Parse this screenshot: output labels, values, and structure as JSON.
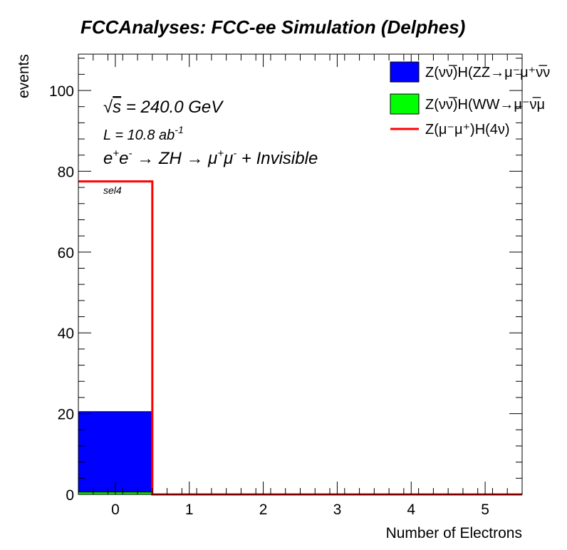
{
  "title": "FCCAnalyses: FCC-ee Simulation (Delphes)",
  "annotations": {
    "sqrt_s_prefix": "√",
    "sqrt_s_var": "s",
    "sqrt_s_value": " = 240.0 GeV",
    "lumi_prefix": "L = 10.8 ab",
    "lumi_exp": "-1",
    "process_prefix": "e",
    "process_e_plus": "+",
    "process_e_mid": "e",
    "process_e_minus": "-",
    "process_arrow1": " → ZH → ",
    "process_mu": "μ",
    "process_mu_plus": "+",
    "process_mu2": "μ",
    "process_mu_minus": "-",
    "process_suffix": " + Invisible",
    "selection": "sel4"
  },
  "colors": {
    "zz_fill": "#0000ff",
    "ww_fill": "#00ff00",
    "signal_line": "#ff0000",
    "axis": "#000000"
  },
  "chart_data": {
    "type": "bar",
    "subtype": "stacked-histogram",
    "title": "FCCAnalyses: FCC-ee Simulation (Delphes)",
    "xlabel": "Number of Electrons",
    "ylabel": "events",
    "xlim": [
      -0.5,
      5.5
    ],
    "ylim": [
      0,
      109
    ],
    "x_ticks": [
      0,
      1,
      2,
      3,
      4,
      5
    ],
    "y_ticks": [
      0,
      20,
      40,
      60,
      80,
      100
    ],
    "bin_edges": [
      -0.5,
      0.5,
      1.5,
      2.5,
      3.5,
      4.5,
      5.5
    ],
    "series": [
      {
        "name": "Z(νν̅)H(ZZ→μ⁻μ⁺ν̅ν",
        "kind": "stack",
        "color": "#0000ff",
        "values": [
          19.9,
          0,
          0,
          0,
          0,
          0
        ]
      },
      {
        "name": "Z(νν̅)H(WW→μ⁻ν̅μ",
        "kind": "stack",
        "color": "#00ff00",
        "values": [
          0.6,
          0,
          0,
          0,
          0,
          0
        ]
      },
      {
        "name": "Z(μ⁻μ⁺)H(4ν)",
        "kind": "line",
        "color": "#ff0000",
        "values": [
          77.5,
          0,
          0,
          0,
          0,
          0
        ]
      }
    ],
    "legend_position": "top-right",
    "grid": false
  }
}
